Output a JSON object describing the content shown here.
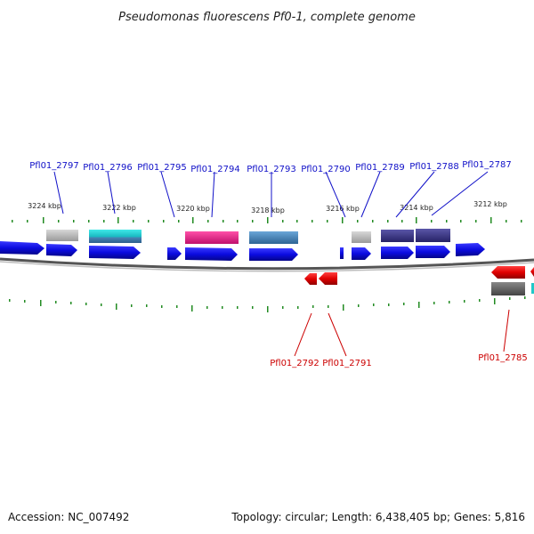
{
  "title": "Pseudomonas fluorescens Pf0-1, complete genome",
  "footer": {
    "accession": "Accession: NC_007492",
    "summary": "Topology: circular; Length: 6,438,405 bp; Genes: 5,816"
  },
  "scale_labels": [
    "3224 kbp",
    "3222 kbp",
    "3220 kbp",
    "3218 kbp",
    "3216 kbp",
    "3214 kbp",
    "3212 kbp"
  ],
  "forward_gene_labels": [
    "Pfl01_2797",
    "Pfl01_2796",
    "Pfl01_2795",
    "Pfl01_2794",
    "Pfl01_2793",
    "Pfl01_2790",
    "Pfl01_2789",
    "Pfl01_2788",
    "Pfl01_2787"
  ],
  "reverse_gene_labels": [
    "Pfl01_2792",
    "Pfl01_2791",
    "Pfl01_2785"
  ],
  "colors": {
    "forward_gene": "#0b0be0",
    "reverse_gene": "#e00000",
    "backbone": "#555555",
    "tick": "#228b22",
    "cog_gray": "#b0b0b0",
    "cog_cyan": "#20c8c8",
    "cog_pink": "#e8208c",
    "cog_steelblue": "#4a86b8",
    "cog_slate": "#3c3888",
    "cog_darkgray": "#606060"
  }
}
